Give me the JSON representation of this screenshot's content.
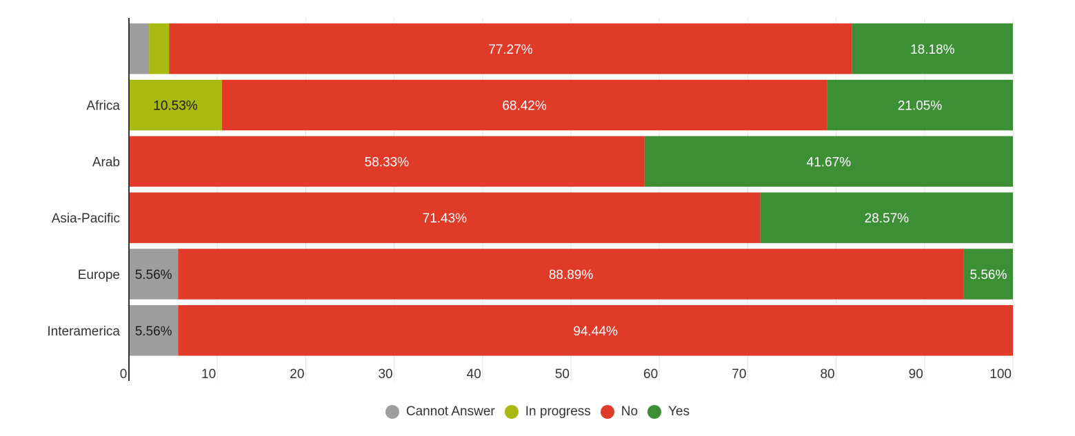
{
  "chart_data": {
    "type": "bar",
    "orientation": "horizontal",
    "stacked": true,
    "categories": [
      "",
      "Africa",
      "Arab",
      "Asia-Pacific",
      "Europe",
      "Interamerica"
    ],
    "series": [
      {
        "name": "Cannot Answer",
        "color": "#9e9e9e",
        "values": [
          2.27,
          0,
          0,
          0,
          5.56,
          5.56
        ],
        "labels": [
          "",
          "",
          "",
          "",
          "5.56%",
          "5.56%"
        ],
        "label_color": "#1a1a1a"
      },
      {
        "name": "In progress",
        "color": "#a8b90f",
        "values": [
          2.27,
          10.53,
          0,
          0,
          0,
          0
        ],
        "labels": [
          "",
          "10.53%",
          "",
          "",
          "",
          ""
        ],
        "label_color": "#1a1a1a"
      },
      {
        "name": "No",
        "color": "#e03b28",
        "values": [
          77.27,
          68.42,
          58.33,
          71.43,
          88.89,
          94.44
        ],
        "labels": [
          "77.27%",
          "68.42%",
          "58.33%",
          "71.43%",
          "88.89%",
          "94.44%"
        ],
        "label_color": "#ffffff"
      },
      {
        "name": "Yes",
        "color": "#3d8f36",
        "values": [
          18.18,
          21.05,
          41.67,
          28.57,
          5.56,
          0
        ],
        "labels": [
          "18.18%",
          "21.05%",
          "41.67%",
          "28.57%",
          "5.56%",
          ""
        ],
        "label_color": "#ffffff"
      }
    ],
    "xlim": [
      0,
      100
    ],
    "xticks": [
      "0",
      "10",
      "20",
      "30",
      "40",
      "50",
      "60",
      "70",
      "80",
      "90",
      "100"
    ],
    "grid": true,
    "legend_position": "bottom",
    "title": "",
    "xlabel": "",
    "ylabel": ""
  }
}
